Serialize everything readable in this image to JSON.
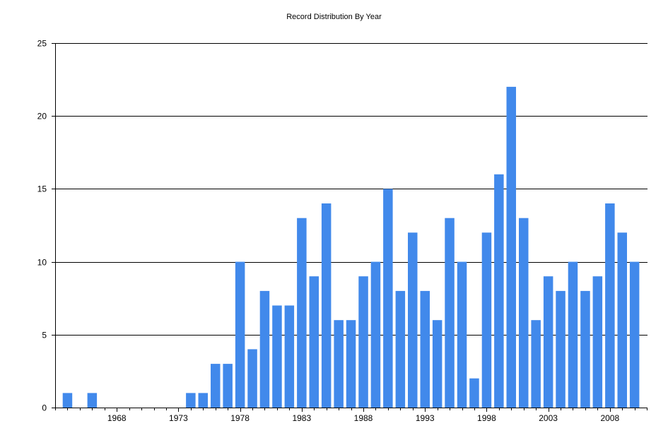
{
  "chart_data": {
    "type": "bar",
    "title": "Record Distribution By Year",
    "xlabel": "",
    "ylabel": "",
    "ylim": [
      0,
      25
    ],
    "yticks": [
      0,
      5,
      10,
      15,
      20,
      25
    ],
    "xlim": [
      1963,
      2011
    ],
    "xticks": [
      1968,
      1973,
      1978,
      1983,
      1988,
      1993,
      1998,
      2003,
      2008
    ],
    "grid": "horizontal",
    "legend": "none",
    "bar_color": "#4189EB",
    "x": [
      1964,
      1966,
      1974,
      1975,
      1976,
      1977,
      1978,
      1979,
      1980,
      1981,
      1982,
      1983,
      1984,
      1985,
      1986,
      1987,
      1988,
      1989,
      1990,
      1991,
      1992,
      1993,
      1994,
      1995,
      1996,
      1997,
      1998,
      1999,
      2000,
      2001,
      2002,
      2003,
      2004,
      2005,
      2006,
      2007,
      2008,
      2009,
      2010
    ],
    "values": [
      1,
      1,
      1,
      1,
      3,
      3,
      10,
      4,
      8,
      7,
      7,
      13,
      9,
      14,
      6,
      6,
      9,
      10,
      15,
      8,
      12,
      8,
      6,
      13,
      10,
      2,
      12,
      16,
      22,
      13,
      6,
      9,
      8,
      10,
      8,
      9,
      14,
      12,
      10
    ]
  }
}
